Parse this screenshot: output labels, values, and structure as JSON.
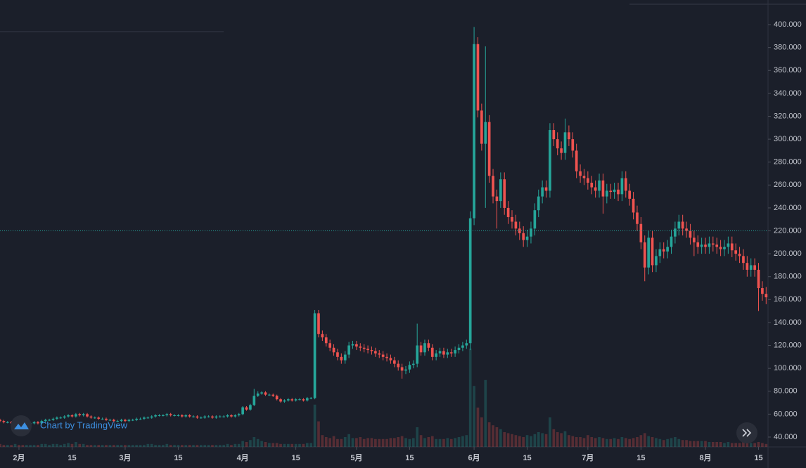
{
  "chart_data": {
    "type": "candlestick",
    "up_color": "#26a69a",
    "down_color": "#ef5350",
    "price_line": 220,
    "watermark": "Chart by TradingView",
    "xlim": [
      0,
      202.5
    ],
    "xticks": [
      {
        "value": 5,
        "label": "2月"
      },
      {
        "value": 19,
        "label": "15"
      },
      {
        "value": 33,
        "label": "3月"
      },
      {
        "value": 47,
        "label": "15"
      },
      {
        "value": 64,
        "label": "4月"
      },
      {
        "value": 78,
        "label": "15"
      },
      {
        "value": 94,
        "label": "5月"
      },
      {
        "value": 108,
        "label": "15"
      },
      {
        "value": 125,
        "label": "6月"
      },
      {
        "value": 139,
        "label": "15"
      },
      {
        "value": 155,
        "label": "7月"
      },
      {
        "value": 169,
        "label": "15"
      },
      {
        "value": 186,
        "label": "8月"
      },
      {
        "value": 200,
        "label": "15"
      }
    ],
    "ylim": [
      31.4,
      421.5
    ],
    "yticks": [
      {
        "value": 40,
        "label": "40.000"
      },
      {
        "value": 60,
        "label": "60.000"
      },
      {
        "value": 80,
        "label": "80.000"
      },
      {
        "value": 100,
        "label": "100.000"
      },
      {
        "value": 120,
        "label": "120.000"
      },
      {
        "value": 140,
        "label": "140.000"
      },
      {
        "value": 160,
        "label": "160.000"
      },
      {
        "value": 180,
        "label": "180.000"
      },
      {
        "value": 200,
        "label": "200.000"
      },
      {
        "value": 220,
        "label": "220.000"
      },
      {
        "value": 240,
        "label": "240.000"
      },
      {
        "value": 260,
        "label": "260.000"
      },
      {
        "value": 280,
        "label": "280.000"
      },
      {
        "value": 300,
        "label": "300.000"
      },
      {
        "value": 320,
        "label": "320.000"
      },
      {
        "value": 340,
        "label": "340.000"
      },
      {
        "value": 360,
        "label": "360.000"
      },
      {
        "value": 380,
        "label": "380.000"
      },
      {
        "value": 400,
        "label": "400.000"
      }
    ],
    "vlim": [
      0,
      100
    ],
    "open": [
      55,
      54,
      53,
      53,
      52,
      53,
      52,
      51,
      52,
      52,
      53,
      52,
      54,
      55,
      55,
      56,
      57,
      57,
      58,
      59,
      58,
      60,
      59,
      60,
      58,
      57,
      57,
      56,
      56,
      55,
      55,
      54,
      54,
      55,
      54,
      55,
      55,
      56,
      56,
      57,
      57,
      58,
      59,
      59,
      59,
      60,
      59,
      59,
      59,
      58,
      59,
      58,
      58,
      57,
      57,
      58,
      58,
      57,
      58,
      58,
      58,
      59,
      58,
      59,
      60,
      66,
      64,
      68,
      76,
      78,
      79,
      77,
      77,
      76,
      73,
      71,
      72,
      73,
      72,
      73,
      73,
      72,
      74,
      74,
      148,
      130,
      127,
      122,
      118,
      114,
      110,
      107,
      112,
      120,
      121,
      119,
      118,
      117,
      116,
      115,
      113,
      112,
      110,
      109,
      107,
      104,
      101,
      98,
      99,
      103,
      104,
      120,
      114,
      122,
      118,
      110,
      113,
      115,
      112,
      114,
      113,
      116,
      118,
      120,
      122,
      231,
      383,
      325,
      296,
      315,
      268,
      250,
      246,
      265,
      240,
      232,
      228,
      222,
      218,
      212,
      215,
      222,
      238,
      250,
      258,
      255,
      308,
      300,
      292,
      288,
      306,
      300,
      290,
      272,
      268,
      266,
      262,
      258,
      255,
      264,
      250,
      255,
      254,
      256,
      252,
      266,
      255,
      248,
      236,
      226,
      210,
      188,
      214,
      190,
      198,
      204,
      202,
      206,
      215,
      222,
      228,
      222,
      220,
      214,
      210,
      206,
      208,
      206,
      209,
      208,
      206,
      204,
      206,
      209,
      203,
      200,
      198,
      192,
      186,
      190,
      186,
      170,
      165
    ],
    "high": [
      56,
      55,
      54,
      54,
      54,
      54,
      53,
      53,
      53,
      54,
      54,
      55,
      56,
      56,
      57,
      58,
      58,
      59,
      60,
      60,
      61,
      61,
      61,
      61,
      59,
      58,
      58,
      57,
      57,
      56,
      56,
      55,
      56,
      56,
      56,
      56,
      57,
      57,
      58,
      58,
      59,
      60,
      60,
      60,
      61,
      61,
      60,
      60,
      60,
      60,
      60,
      59,
      59,
      58,
      59,
      59,
      59,
      59,
      59,
      59,
      60,
      60,
      60,
      61,
      67,
      67,
      69,
      82,
      80,
      80,
      80,
      78,
      78,
      77,
      74,
      73,
      74,
      74,
      74,
      74,
      74,
      75,
      75,
      151,
      151,
      133,
      130,
      125,
      121,
      117,
      113,
      115,
      123,
      124,
      124,
      122,
      121,
      120,
      119,
      118,
      116,
      115,
      113,
      112,
      110,
      107,
      104,
      102,
      106,
      107,
      139,
      123,
      125,
      125,
      121,
      116,
      118,
      118,
      117,
      117,
      119,
      121,
      123,
      125,
      237,
      398,
      389,
      331,
      381,
      321,
      274,
      256,
      271,
      271,
      246,
      238,
      234,
      228,
      224,
      221,
      228,
      244,
      256,
      264,
      264,
      314,
      314,
      306,
      298,
      318,
      312,
      306,
      296,
      278,
      274,
      272,
      268,
      264,
      270,
      270,
      261,
      261,
      262,
      262,
      272,
      272,
      261,
      254,
      242,
      232,
      216,
      220,
      220,
      204,
      210,
      210,
      212,
      221,
      228,
      234,
      234,
      228,
      226,
      220,
      216,
      214,
      214,
      215,
      215,
      214,
      212,
      212,
      215,
      215,
      209,
      206,
      204,
      198,
      196,
      196,
      192,
      176,
      171
    ],
    "low": [
      53,
      52,
      52,
      51,
      51,
      51,
      50,
      50,
      51,
      51,
      51,
      51,
      53,
      54,
      54,
      55,
      56,
      56,
      57,
      57,
      57,
      58,
      58,
      57,
      56,
      56,
      55,
      55,
      54,
      54,
      53,
      53,
      53,
      53,
      53,
      54,
      54,
      55,
      55,
      56,
      56,
      57,
      58,
      58,
      58,
      58,
      58,
      58,
      57,
      57,
      57,
      57,
      56,
      56,
      56,
      57,
      56,
      56,
      57,
      57,
      57,
      57,
      57,
      58,
      59,
      63,
      63,
      67,
      75,
      77,
      76,
      76,
      75,
      72,
      70,
      70,
      71,
      71,
      71,
      72,
      71,
      71,
      73,
      73,
      127,
      124,
      119,
      115,
      111,
      107,
      104,
      104,
      109,
      117,
      116,
      115,
      114,
      113,
      112,
      110,
      109,
      107,
      106,
      104,
      101,
      98,
      91,
      95,
      96,
      100,
      101,
      111,
      111,
      115,
      107,
      107,
      110,
      109,
      109,
      110,
      110,
      113,
      115,
      117,
      116,
      225,
      319,
      290,
      240,
      262,
      244,
      222,
      240,
      234,
      226,
      222,
      216,
      212,
      206,
      206,
      209,
      216,
      232,
      244,
      249,
      249,
      294,
      286,
      282,
      282,
      294,
      284,
      266,
      262,
      260,
      256,
      252,
      249,
      249,
      235,
      244,
      248,
      248,
      246,
      246,
      249,
      242,
      230,
      220,
      204,
      176,
      182,
      184,
      184,
      192,
      196,
      196,
      200,
      209,
      216,
      216,
      214,
      208,
      198,
      200,
      200,
      200,
      200,
      202,
      200,
      198,
      198,
      200,
      197,
      194,
      192,
      186,
      180,
      180,
      180,
      150,
      159,
      156
    ],
    "close": [
      54,
      53,
      53,
      52,
      53,
      52,
      51,
      52,
      52,
      53,
      52,
      54,
      55,
      55,
      56,
      57,
      57,
      58,
      59,
      58,
      60,
      59,
      60,
      58,
      57,
      57,
      56,
      56,
      55,
      55,
      54,
      54,
      55,
      54,
      55,
      55,
      56,
      56,
      57,
      57,
      58,
      59,
      59,
      59,
      60,
      59,
      59,
      59,
      58,
      59,
      58,
      58,
      57,
      57,
      58,
      58,
      57,
      58,
      58,
      58,
      59,
      58,
      59,
      60,
      66,
      64,
      68,
      76,
      78,
      79,
      77,
      77,
      76,
      73,
      71,
      72,
      73,
      72,
      73,
      73,
      72,
      74,
      74,
      148,
      130,
      127,
      122,
      118,
      114,
      110,
      107,
      112,
      120,
      121,
      119,
      118,
      117,
      116,
      115,
      113,
      112,
      110,
      109,
      107,
      104,
      101,
      98,
      99,
      103,
      104,
      120,
      114,
      122,
      118,
      110,
      113,
      115,
      112,
      114,
      113,
      116,
      118,
      120,
      122,
      231,
      383,
      325,
      296,
      315,
      268,
      250,
      246,
      265,
      240,
      232,
      228,
      222,
      218,
      212,
      215,
      222,
      238,
      250,
      258,
      255,
      308,
      300,
      292,
      288,
      306,
      300,
      290,
      272,
      268,
      266,
      262,
      258,
      255,
      264,
      250,
      255,
      254,
      256,
      252,
      266,
      255,
      248,
      236,
      226,
      210,
      188,
      214,
      190,
      198,
      204,
      202,
      206,
      215,
      222,
      228,
      222,
      220,
      214,
      210,
      206,
      208,
      206,
      209,
      208,
      206,
      204,
      206,
      209,
      203,
      200,
      198,
      192,
      186,
      190,
      186,
      170,
      165,
      162
    ],
    "volume": [
      3,
      2,
      2,
      2,
      3,
      2,
      2,
      2,
      2,
      2,
      2,
      3,
      3,
      2,
      3,
      3,
      2,
      3,
      4,
      3,
      5,
      3,
      3,
      2,
      2,
      2,
      2,
      2,
      2,
      2,
      2,
      2,
      2,
      2,
      2,
      2,
      2,
      2,
      2,
      3,
      3,
      2,
      2,
      2,
      3,
      2,
      2,
      2,
      2,
      2,
      2,
      2,
      2,
      2,
      2,
      2,
      2,
      2,
      2,
      2,
      3,
      2,
      3,
      3,
      6,
      5,
      7,
      10,
      8,
      6,
      5,
      4,
      4,
      4,
      3,
      3,
      3,
      3,
      3,
      3,
      3,
      4,
      4,
      43,
      26,
      12,
      10,
      9,
      11,
      8,
      8,
      10,
      13,
      9,
      9,
      10,
      8,
      9,
      9,
      8,
      8,
      8,
      8,
      9,
      9,
      10,
      11,
      9,
      8,
      9,
      20,
      12,
      9,
      10,
      11,
      8,
      8,
      8,
      9,
      8,
      9,
      10,
      11,
      12,
      100,
      62,
      40,
      30,
      68,
      25,
      22,
      20,
      18,
      15,
      14,
      13,
      12,
      11,
      10,
      12,
      11,
      13,
      15,
      14,
      13,
      30,
      18,
      15,
      14,
      16,
      12,
      11,
      10,
      10,
      9,
      12,
      10,
      9,
      10,
      9,
      8,
      8,
      9,
      8,
      10,
      9,
      8,
      9,
      10,
      12,
      14,
      11,
      10,
      9,
      8,
      7,
      8,
      9,
      10,
      8,
      7,
      7,
      6,
      6,
      6,
      6,
      6,
      5,
      5,
      5,
      5,
      4,
      5,
      4,
      4,
      4,
      5,
      5,
      4,
      4,
      5,
      4,
      3
    ]
  }
}
